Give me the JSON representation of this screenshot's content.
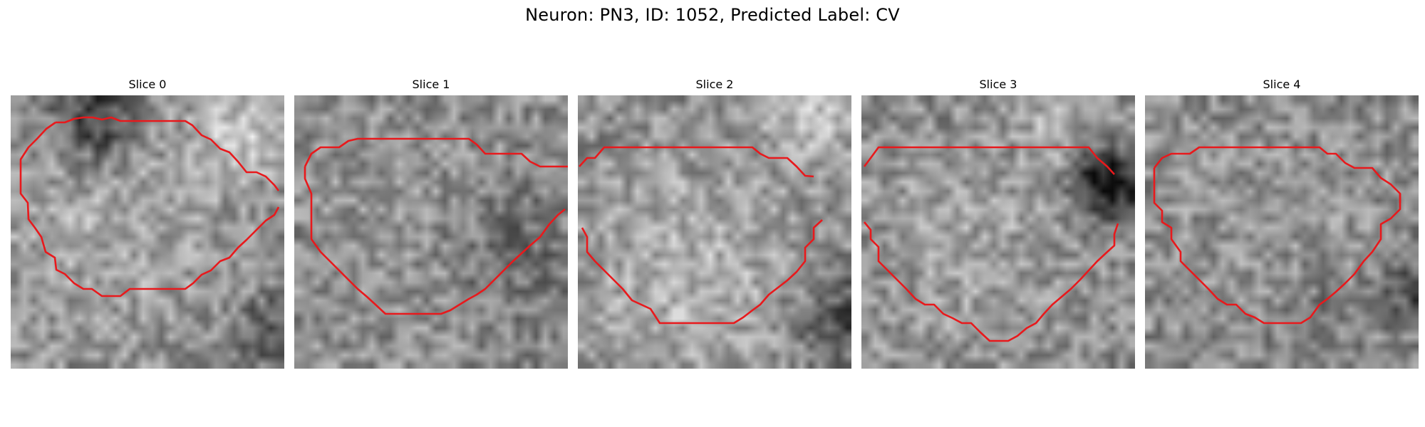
{
  "figure": {
    "title": "Neuron: PN3, ID: 1052, Predicted Label: CV"
  },
  "slices": [
    {
      "title": "Slice 0"
    },
    {
      "title": "Slice 1"
    },
    {
      "title": "Slice 2"
    },
    {
      "title": "Slice 3"
    },
    {
      "title": "Slice 4"
    }
  ],
  "colors": {
    "contour": "#e8191c",
    "background": "#ffffff"
  },
  "colormap": "grayscale"
}
